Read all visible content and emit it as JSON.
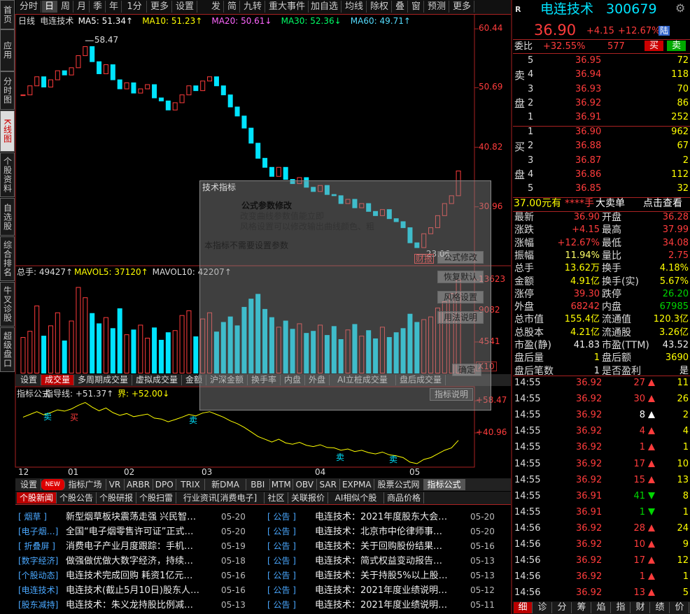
{
  "toolbar": {
    "left": [
      "分时",
      "日",
      "周",
      "月",
      "季",
      "年",
      "1分",
      "更多",
      "设置"
    ],
    "middle": [
      "发",
      "简",
      "九转",
      "重大事件"
    ],
    "right": [
      "加自选",
      "均线",
      "除权",
      "叠",
      "窗",
      "预测",
      "更多"
    ]
  },
  "side_tabs": [
    "首页",
    "应用",
    "分时图",
    "K线图",
    "个股资料",
    "自选股",
    "综合排名",
    "牛叉诊股",
    "超级盘口"
  ],
  "ma_header": [
    {
      "text": "日线",
      "color": "#ddd"
    },
    {
      "text": "电连技术",
      "color": "#ddd"
    },
    {
      "text": "MA5: 51.34↑",
      "color": "#ffffff"
    },
    {
      "text": "MA10: 51.23↑",
      "color": "#ffff00"
    },
    {
      "text": "MA20: 50.61↓",
      "color": "#ff66ff"
    },
    {
      "text": "MA30: 52.36↓",
      "color": "#00ff66"
    },
    {
      "text": "MA60: 49.71↑",
      "color": "#55ddff"
    }
  ],
  "kline": {
    "ylim": [
      21.2,
      62.9
    ],
    "yticks": [
      60.44,
      50.69,
      40.82,
      30.96
    ],
    "high_label": 58.47,
    "low_label": 23.06,
    "report_label": "财报",
    "close": [
      49.5,
      51,
      52.5,
      50.8,
      52,
      53.5,
      52.8,
      54,
      56,
      57.5,
      55,
      53,
      54.5,
      52,
      50.5,
      51.5,
      49.8,
      50.5,
      51.2,
      49,
      48.5,
      47,
      48.2,
      49.5,
      51,
      50.2,
      51.8,
      52.5,
      51,
      49.5,
      47.5,
      46,
      44,
      41.5,
      39,
      37.5,
      36,
      37.5,
      35.5,
      34.8,
      35.8,
      34.2,
      33.5,
      34.5,
      33,
      32.8,
      31.5,
      32.2,
      30.8,
      31.5,
      30.2,
      29.5,
      30.5,
      29,
      28.5,
      27.5,
      25,
      24.2,
      26.5,
      27.5,
      29.5,
      31.5,
      32.8,
      36.9
    ],
    "volume": [
      5200,
      6100,
      9800,
      5400,
      6900,
      8800,
      4700,
      7600,
      12500,
      11000,
      8700,
      7200,
      8100,
      6500,
      9400,
      5600,
      6300,
      7000,
      5100,
      6600,
      4800,
      5900,
      6200,
      8400,
      9100,
      5300,
      7900,
      8800,
      6000,
      7400,
      8200,
      6900,
      9600,
      10800,
      11500,
      9300,
      8100,
      6700,
      7600,
      6400,
      7200,
      5800,
      6100,
      7000,
      5500,
      6800,
      4900,
      6300,
      7100,
      5400,
      6200,
      5000,
      6700,
      5200,
      5900,
      6500,
      8600,
      7400,
      7800,
      8200,
      9500,
      10400,
      11600,
      13620
    ],
    "vol_lim": [
      0,
      15560
    ],
    "vol_ticks": [
      13623,
      9082,
      4541
    ],
    "vol_unit": "X10"
  },
  "volume_header": [
    {
      "text": "总手: 49427↑",
      "color": "#ddd"
    },
    {
      "text": "MAVOL5: 37120↑",
      "color": "#ffff00"
    },
    {
      "text": "MAVOL10: 42207↑",
      "color": "#ddd"
    }
  ],
  "volume_tabs": [
    "设置",
    "成交量",
    "多周期成交量",
    "虚拟成交量",
    "金额",
    "沪深金额",
    "换手率",
    "内盘",
    "外盘",
    "AI立桩成交量",
    "盘后成交量"
  ],
  "indicator": {
    "header": [
      {
        "text": "指标公式",
        "color": "#ddd"
      },
      {
        "text": "指导线: +51.37↑",
        "color": "#ddd"
      },
      {
        "text": "界: +52.00↓",
        "color": "#ffff00"
      }
    ],
    "ylim": [
      22.3,
      66.1
    ],
    "yticks": [
      {
        "value": 58.47,
        "label": "+58.47"
      },
      {
        "value": 40.96,
        "label": "+40.96"
      }
    ],
    "signals": [
      {
        "text": "卖",
        "color": "#00e4ff"
      },
      {
        "text": "买",
        "color": "#ff3c3c"
      },
      {
        "text": "卖",
        "color": "#00e4ff"
      },
      {
        "text": "卖",
        "color": "#00e4ff"
      },
      {
        "text": "卖",
        "color": "#00e4ff"
      }
    ],
    "help": "指标说明"
  },
  "months": [
    "12",
    "01",
    "02",
    "03",
    "04",
    "05"
  ],
  "formula_tabs": [
    "设置",
    "NEW",
    "指标广场",
    "VR",
    "ARBR",
    "DPO",
    "TRIX",
    "新DMA",
    "BBI",
    "MTM",
    "OBV",
    "SAR",
    "EXPMA",
    "股票公式网",
    "指标公式"
  ],
  "news_tabs": [
    "个股新闻",
    "个股公告",
    "个股研报",
    "个股扫雷",
    "行业资讯[消费电子]",
    "社区",
    "关联报价",
    "AI相似个股",
    "商品价格"
  ],
  "news_left": [
    {
      "tag": "[ 烟草 ]",
      "title": "新型烟草板块震荡走强 兴民智…",
      "date": "05-20"
    },
    {
      "tag": "[电子烟…]",
      "title": "全国“电子烟零售许可证”正式…",
      "date": "05-20"
    },
    {
      "tag": "[ 折叠屏 ]",
      "title": "消费电子产业月度跟踪：手机…",
      "date": "05-19"
    },
    {
      "tag": "[数字经济]",
      "title": "做强做优做大数字经济，持续…",
      "date": "05-18"
    },
    {
      "tag": "[个股动态]",
      "title": "电连技术完成回购 耗资1亿元…",
      "date": "05-16"
    },
    {
      "tag": "[电连技术]",
      "title": "电连技术(截止5月10日)股东人…",
      "date": "05-16"
    },
    {
      "tag": "[股东减持]",
      "title": "电连技术：朱义龙持股比例减…",
      "date": "05-13"
    }
  ],
  "news_right": [
    {
      "tag": "[ 公告 ]",
      "title": "电连技术：2021年度股东大会…",
      "date": "05-20"
    },
    {
      "tag": "[ 公告 ]",
      "title": "电连技术：北京市中伦律师事…",
      "date": "05-20"
    },
    {
      "tag": "[ 公告 ]",
      "title": "电连技术：关于回购股份结果…",
      "date": "05-16"
    },
    {
      "tag": "[ 公告 ]",
      "title": "电连技术：简式权益变动报告…",
      "date": "05-13"
    },
    {
      "tag": "[ 公告 ]",
      "title": "电连技术：关于持股5%以上股…",
      "date": "05-13"
    },
    {
      "tag": "[ 公告 ]",
      "title": "电连技术：2021年度业绩说明…",
      "date": "05-12"
    },
    {
      "tag": "[ 公告 ]",
      "title": "电连技术：2021年度业绩说明…",
      "date": "05-11"
    }
  ],
  "popup": {
    "title": "技术指标",
    "heading": "公式参数修改",
    "line1": "改变曲线参数值能立即",
    "line2": "风格设置可以修改输出曲线颜色、粗",
    "note": "本指标不需要设置参数",
    "buttons": [
      "公式修改",
      "恢复默认",
      "风格设置",
      "用法说明",
      "确定"
    ]
  },
  "quote": {
    "badge": "R",
    "name": "电连技术",
    "code": "300679",
    "price": "36.90",
    "change": "+4.15",
    "pct": "+12.67%",
    "tag": "陆",
    "ratio_label": "委比",
    "ratio": "+32.55%",
    "diff": "577",
    "buy": "买",
    "sell": "卖"
  },
  "order_book": {
    "sell_label": [
      "卖",
      "盘"
    ],
    "buy_label": [
      "买",
      "盘"
    ],
    "sell": [
      [
        "5",
        "36.95",
        "72"
      ],
      [
        "4",
        "36.94",
        "118"
      ],
      [
        "3",
        "36.93",
        "70"
      ],
      [
        "2",
        "36.92",
        "86"
      ],
      [
        "1",
        "36.91",
        "252"
      ]
    ],
    "buy": [
      [
        "1",
        "36.90",
        "962"
      ],
      [
        "2",
        "36.88",
        "67"
      ],
      [
        "3",
        "36.87",
        "2"
      ],
      [
        "4",
        "36.86",
        "112"
      ],
      [
        "5",
        "36.85",
        "32"
      ]
    ],
    "alert": [
      "37.00元有",
      "****手",
      "大卖单",
      "点击查看"
    ]
  },
  "stats": [
    [
      {
        "label": "最新",
        "value": "36.90",
        "color": "#ff3c3c"
      },
      {
        "label": "开盘",
        "value": "36.28",
        "color": "#ff3c3c"
      }
    ],
    [
      {
        "label": "涨跌",
        "value": "+4.15",
        "color": "#ff3c3c"
      },
      {
        "label": "最高",
        "value": "37.99",
        "color": "#ff3c3c"
      }
    ],
    [
      {
        "label": "涨幅",
        "value": "+12.67%",
        "color": "#ff3c3c"
      },
      {
        "label": "最低",
        "value": "34.08",
        "color": "#ff3c3c"
      }
    ],
    [
      {
        "label": "振幅",
        "value": "11.94%",
        "color": "#ffff66"
      },
      {
        "label": "量比",
        "value": "2.75",
        "color": "#ff3c3c"
      }
    ],
    [
      {
        "label": "总手",
        "value": "13.62万",
        "color": "#ffff00"
      },
      {
        "label": "换手",
        "value": "4.18%",
        "color": "#ffff00"
      }
    ],
    [
      {
        "label": "金额",
        "value": "4.91亿",
        "color": "#ffff00"
      },
      {
        "label": "换手(实)",
        "value": "5.67%",
        "color": "#ffff00"
      }
    ],
    [
      {
        "label": "涨停",
        "value": "39.30",
        "color": "#ff3c3c"
      },
      {
        "label": "跌停",
        "value": "26.20",
        "color": "#00d600"
      }
    ],
    [
      {
        "label": "外盘",
        "value": "68242",
        "color": "#ff3c3c"
      },
      {
        "label": "内盘",
        "value": "67985",
        "color": "#00d600"
      }
    ],
    [
      {
        "label": "总市值",
        "value": "155.4亿",
        "color": "#ffff00"
      },
      {
        "label": "流通值",
        "value": "120.3亿",
        "color": "#ffff00"
      }
    ],
    [
      {
        "label": "总股本",
        "value": "4.21亿",
        "color": "#ffff00"
      },
      {
        "label": "流通股",
        "value": "3.26亿",
        "color": "#ffff00"
      }
    ],
    [
      {
        "label": "市盈(静)",
        "value": "41.83",
        "color": "#eeeeee"
      },
      {
        "label": "市盈(TTM)",
        "value": "43.52",
        "color": "#eeeeee"
      }
    ],
    [
      {
        "label": "盘后量",
        "value": "1",
        "color": "#ffff00"
      },
      {
        "label": "盘后额",
        "value": "3690",
        "color": "#ffff00"
      }
    ],
    [
      {
        "label": "盘后笔数",
        "value": "1",
        "color": "#eeeeee"
      },
      {
        "label": "是否盈利",
        "value": "是",
        "color": "#eeeeee"
      }
    ]
  ],
  "ticks": [
    {
      "time": "14:55",
      "price": "36.92",
      "vol": "27",
      "dir": "up",
      "count": "11"
    },
    {
      "time": "14:55",
      "price": "36.92",
      "vol": "30",
      "dir": "up",
      "count": "26"
    },
    {
      "time": "14:55",
      "price": "36.92",
      "vol": "8",
      "dir": "neutral",
      "count": "2"
    },
    {
      "time": "14:55",
      "price": "36.92",
      "vol": "4",
      "dir": "up",
      "count": "4"
    },
    {
      "time": "14:55",
      "price": "36.92",
      "vol": "1",
      "dir": "up",
      "count": "1"
    },
    {
      "time": "14:55",
      "price": "36.92",
      "vol": "17",
      "dir": "up",
      "count": "10"
    },
    {
      "time": "14:55",
      "price": "36.92",
      "vol": "15",
      "dir": "up",
      "count": "13"
    },
    {
      "time": "14:55",
      "price": "36.91",
      "vol": "41",
      "dir": "down",
      "count": "8"
    },
    {
      "time": "14:55",
      "price": "36.91",
      "vol": "1",
      "dir": "down",
      "count": "1"
    },
    {
      "time": "14:56",
      "price": "36.92",
      "vol": "28",
      "dir": "up",
      "count": "24"
    },
    {
      "time": "14:56",
      "price": "36.92",
      "vol": "10",
      "dir": "up",
      "count": "9"
    },
    {
      "time": "14:56",
      "price": "36.92",
      "vol": "17",
      "dir": "up",
      "count": "12"
    },
    {
      "time": "14:56",
      "price": "36.92",
      "vol": "1",
      "dir": "up",
      "count": "1"
    },
    {
      "time": "14:56",
      "price": "36.92",
      "vol": "13",
      "dir": "up",
      "count": "5"
    }
  ],
  "bottom_tabs": [
    "细",
    "诊",
    "分",
    "筹",
    "焰",
    "指",
    "财",
    "绩",
    "价"
  ]
}
